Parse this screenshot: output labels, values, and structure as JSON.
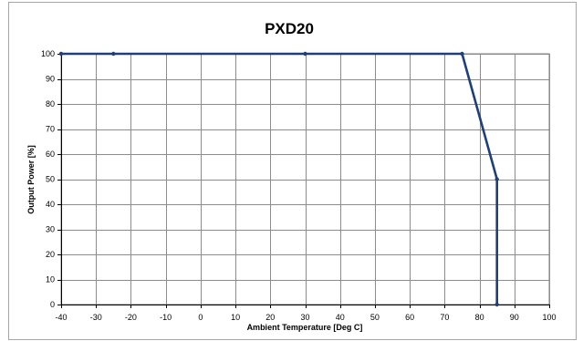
{
  "chart_data": {
    "type": "line",
    "title": "PXD20",
    "xlabel": "Ambient Temperature [Deg C]",
    "ylabel": "Output Power [%]",
    "xlim": [
      -40,
      100
    ],
    "ylim": [
      0,
      100
    ],
    "xticks": [
      -40,
      -30,
      -20,
      -10,
      0,
      10,
      20,
      30,
      40,
      50,
      60,
      70,
      80,
      90,
      100
    ],
    "yticks": [
      0,
      10,
      20,
      30,
      40,
      50,
      60,
      70,
      80,
      90,
      100
    ],
    "grid": true,
    "series": [
      {
        "color": "#1f3f7a",
        "points": [
          [
            -40,
            100
          ],
          [
            -25,
            100
          ],
          [
            30,
            100
          ],
          [
            75,
            100
          ],
          [
            85,
            50
          ],
          [
            85,
            0
          ]
        ]
      }
    ]
  }
}
